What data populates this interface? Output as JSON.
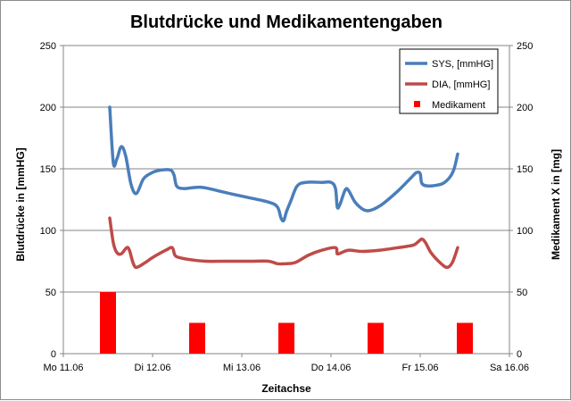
{
  "chart_data": {
    "type": "line",
    "title": "Blutdrücke und Medikamentengaben",
    "xlabel": "Zeitachse",
    "ylabel": "Blutdrücke in [mmHG]",
    "y2label": "Medikament X in [mg]",
    "ylim": [
      0,
      250
    ],
    "y2lim": [
      0,
      250
    ],
    "yticks": [
      0,
      50,
      100,
      150,
      200,
      250
    ],
    "xlim": [
      0,
      5
    ],
    "xticks": [
      {
        "x": 0,
        "label": "Mo 11.06"
      },
      {
        "x": 1,
        "label": "Di 12.06"
      },
      {
        "x": 2,
        "label": "Mi 13.06"
      },
      {
        "x": 3,
        "label": "Do 14.06"
      },
      {
        "x": 4,
        "label": "Fr 15.06"
      },
      {
        "x": 5,
        "label": "Sa 16.06"
      }
    ],
    "grid": true,
    "legend_position": "top-right",
    "series": [
      {
        "name": "SYS, [mmHG]",
        "kind": "line",
        "color": "#4a7ebb",
        "points": [
          [
            0.52,
            200
          ],
          [
            0.56,
            155
          ],
          [
            0.6,
            158
          ],
          [
            0.65,
            168
          ],
          [
            0.7,
            160
          ],
          [
            0.76,
            137
          ],
          [
            0.82,
            130
          ],
          [
            0.9,
            142
          ],
          [
            1.0,
            147
          ],
          [
            1.1,
            149
          ],
          [
            1.2,
            149
          ],
          [
            1.24,
            145
          ],
          [
            1.27,
            136
          ],
          [
            1.35,
            134
          ],
          [
            1.55,
            135
          ],
          [
            1.8,
            131
          ],
          [
            2.05,
            127
          ],
          [
            2.3,
            123
          ],
          [
            2.4,
            119
          ],
          [
            2.44,
            110
          ],
          [
            2.47,
            108
          ],
          [
            2.5,
            115
          ],
          [
            2.55,
            124
          ],
          [
            2.62,
            136
          ],
          [
            2.72,
            139
          ],
          [
            2.9,
            139
          ],
          [
            3.0,
            139
          ],
          [
            3.05,
            134
          ],
          [
            3.07,
            119
          ],
          [
            3.1,
            121
          ],
          [
            3.16,
            133
          ],
          [
            3.2,
            132
          ],
          [
            3.28,
            122
          ],
          [
            3.4,
            116
          ],
          [
            3.55,
            120
          ],
          [
            3.75,
            132
          ],
          [
            3.9,
            143
          ],
          [
            3.96,
            147
          ],
          [
            4.0,
            146
          ],
          [
            4.02,
            138
          ],
          [
            4.1,
            136
          ],
          [
            4.25,
            138
          ],
          [
            4.33,
            143
          ],
          [
            4.38,
            150
          ],
          [
            4.42,
            162
          ]
        ]
      },
      {
        "name": "DIA, [mmHG]",
        "kind": "line",
        "color": "#be4b48",
        "points": [
          [
            0.52,
            110
          ],
          [
            0.56,
            90
          ],
          [
            0.6,
            82
          ],
          [
            0.65,
            81
          ],
          [
            0.71,
            86
          ],
          [
            0.74,
            84
          ],
          [
            0.78,
            74
          ],
          [
            0.82,
            70
          ],
          [
            0.92,
            74
          ],
          [
            1.0,
            78
          ],
          [
            1.15,
            84
          ],
          [
            1.22,
            86
          ],
          [
            1.25,
            80
          ],
          [
            1.3,
            78
          ],
          [
            1.45,
            76
          ],
          [
            1.6,
            75
          ],
          [
            1.85,
            75
          ],
          [
            2.1,
            75
          ],
          [
            2.3,
            75
          ],
          [
            2.4,
            73
          ],
          [
            2.5,
            73
          ],
          [
            2.6,
            74
          ],
          [
            2.75,
            80
          ],
          [
            2.9,
            84
          ],
          [
            3.05,
            86
          ],
          [
            3.07,
            81
          ],
          [
            3.12,
            82
          ],
          [
            3.2,
            84
          ],
          [
            3.35,
            83
          ],
          [
            3.55,
            84
          ],
          [
            3.75,
            86
          ],
          [
            3.92,
            88
          ],
          [
            3.98,
            91
          ],
          [
            4.02,
            93
          ],
          [
            4.06,
            90
          ],
          [
            4.12,
            82
          ],
          [
            4.22,
            74
          ],
          [
            4.3,
            70
          ],
          [
            4.36,
            74
          ],
          [
            4.42,
            86
          ]
        ]
      },
      {
        "name": "Medikament",
        "kind": "bar",
        "axis": "y2",
        "color": "#ff0000",
        "points": [
          [
            0.5,
            50
          ],
          [
            1.5,
            25
          ],
          [
            2.5,
            25
          ],
          [
            3.5,
            25
          ],
          [
            4.5,
            25
          ]
        ]
      }
    ]
  }
}
